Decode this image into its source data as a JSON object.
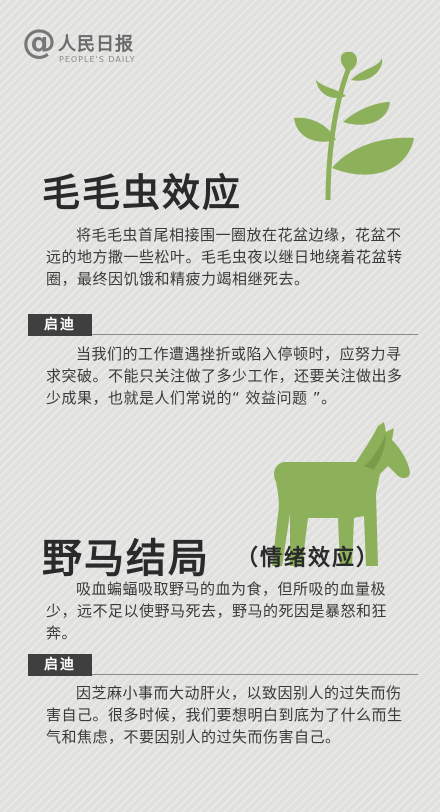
{
  "logo": {
    "text_cn": "人民日报",
    "text_en": "PEOPLE'S DAILY"
  },
  "section1": {
    "title": "毛毛虫效应",
    "body": "将毛毛虫首尾相接围一圈放在花盆边缘，花盆不远的地方撒一些松叶。毛毛虫夜以继日地绕着花盆转圈，最终因饥饿和精疲力竭相继死去。",
    "tag": "启迪",
    "insight": "当我们的工作遭遇挫折或陷入停顿时，应努力寻求突破。不能只关注做了多少工作，还要关注做出多少成果，也就是人们常说的“ 效益问题 ”。",
    "icon": "plant-icon"
  },
  "section2": {
    "title": "野马结局",
    "subtitle": "（情绪效应）",
    "body": "吸血蝙蝠吸取野马的血为食，但所吸的血量极少，远不足以使野马死去，野马的死因是暴怒和狂奔。",
    "tag": "启迪",
    "insight": "因芝麻小事而大动肝火，以致因别人的过失而伤害自己。很多时候，我们要想明白到底为了什么而生气和焦虑，不要因别人的过失而伤害自己。",
    "icon": "horse-icon"
  },
  "colors": {
    "accent_green": "#8db05a",
    "tag_bg": "#3f3f3f",
    "background": "#e4e4e2"
  }
}
